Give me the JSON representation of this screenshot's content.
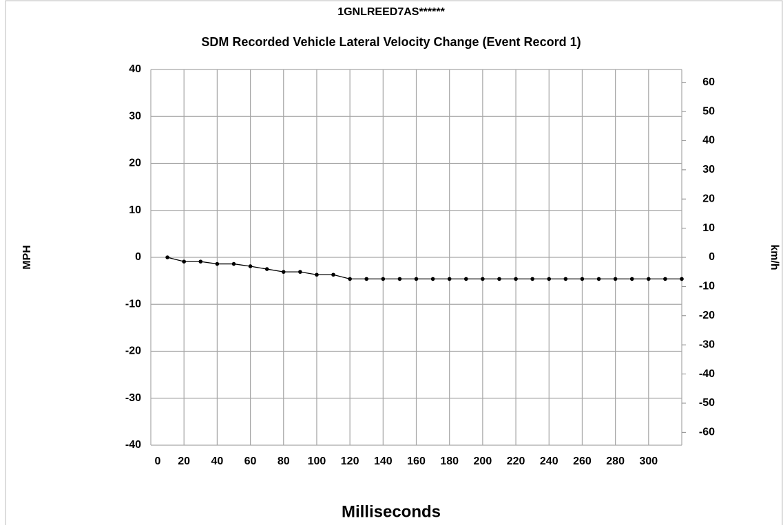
{
  "chart_data": {
    "type": "line",
    "title": "1GNLREED7AS******",
    "subtitle": "SDM Recorded Vehicle Lateral Velocity Change (Event Record 1)",
    "xlabel": "Milliseconds",
    "ylabel": "MPH",
    "y2label": "km/h",
    "x": [
      10,
      20,
      30,
      40,
      50,
      60,
      70,
      80,
      90,
      100,
      110,
      120,
      130,
      140,
      150,
      160,
      170,
      180,
      190,
      200,
      210,
      220,
      230,
      240,
      250,
      260,
      270,
      280,
      290,
      300,
      310,
      320
    ],
    "series": [
      {
        "name": "Lateral Velocity Change",
        "color": "#000000",
        "values": [
          0,
          -0.9,
          -0.9,
          -1.4,
          -1.4,
          -1.9,
          -2.5,
          -3.1,
          -3.1,
          -3.7,
          -3.7,
          -4.6,
          -4.6,
          -4.6,
          -4.6,
          -4.6,
          -4.6,
          -4.6,
          -4.6,
          -4.6,
          -4.6,
          -4.6,
          -4.6,
          -4.6,
          -4.6,
          -4.6,
          -4.6,
          -4.6,
          -4.6,
          -4.6,
          -4.6,
          -4.6
        ]
      }
    ],
    "xlim": [
      0,
      320
    ],
    "xticks": [
      0,
      20,
      40,
      60,
      80,
      100,
      120,
      140,
      160,
      180,
      200,
      220,
      240,
      260,
      280,
      300
    ],
    "ylim": [
      -40,
      40
    ],
    "yticks": [
      -40,
      -30,
      -20,
      -10,
      0,
      10,
      20,
      30,
      40
    ],
    "y2lim": [
      -64.4,
      64.4
    ],
    "y2ticks": [
      -60,
      -50,
      -40,
      -30,
      -20,
      -10,
      0,
      10,
      20,
      30,
      40,
      50,
      60
    ],
    "grid": true
  }
}
